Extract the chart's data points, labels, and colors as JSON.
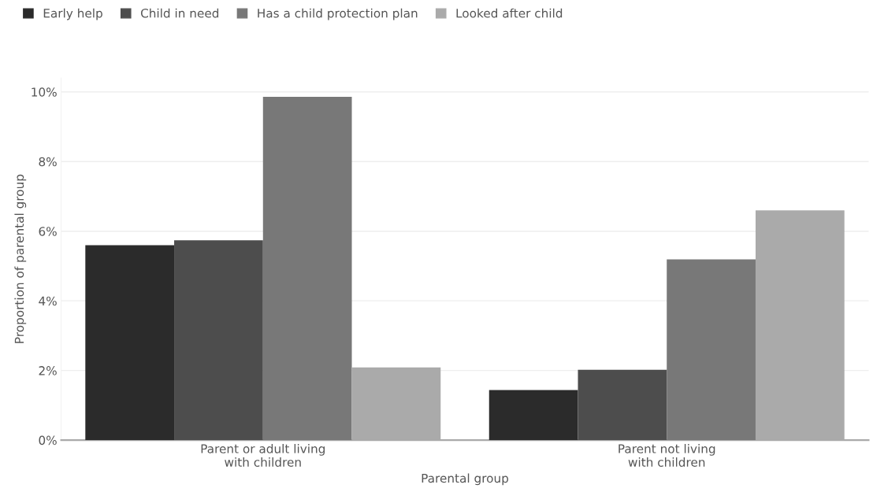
{
  "chart_data": {
    "type": "bar",
    "xlabel": "Parental group",
    "ylabel": "Proportion of parental group",
    "categories": [
      "Parent or adult living\nwith children",
      "Parent not living\nwith children"
    ],
    "series": [
      {
        "name": "Early help",
        "color": "#2b2b2b",
        "values": [
          5.6,
          1.44
        ]
      },
      {
        "name": "Child in need",
        "color": "#4d4d4d",
        "values": [
          5.74,
          2.02
        ]
      },
      {
        "name": "Has a child protection plan",
        "color": "#787878",
        "values": [
          9.86,
          5.19
        ]
      },
      {
        "name": "Looked after child",
        "color": "#aaaaaa",
        "values": [
          2.09,
          6.6
        ]
      }
    ],
    "ylim": [
      0,
      10.4
    ],
    "yticks": [
      {
        "value": 0,
        "label": "0%"
      },
      {
        "value": 2,
        "label": "2%"
      },
      {
        "value": 4,
        "label": "4%"
      },
      {
        "value": 6,
        "label": "6%"
      },
      {
        "value": 8,
        "label": "8%"
      },
      {
        "value": 10,
        "label": "10%"
      }
    ],
    "grid": "y",
    "legend": "top left"
  }
}
